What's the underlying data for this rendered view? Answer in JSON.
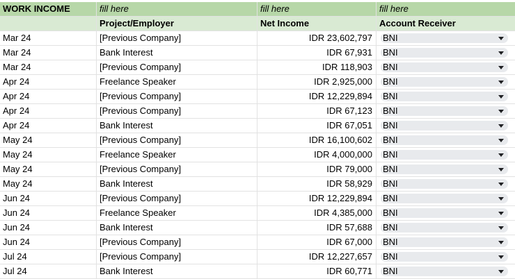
{
  "top": [
    "WORK INCOME",
    "fill here",
    "fill here",
    "fill here"
  ],
  "headers": [
    "",
    "Project/Employer",
    "Net Income",
    "Account Receiver"
  ],
  "rows": [
    {
      "month": "Mar 24",
      "project": "[Previous Company]",
      "income": "IDR 23,602,797",
      "account": "BNI"
    },
    {
      "month": "Mar 24",
      "project": "Bank Interest",
      "income": "IDR 67,931",
      "account": "BNI"
    },
    {
      "month": "Mar 24",
      "project": "[Previous Company]",
      "income": "IDR 118,903",
      "account": "BNI"
    },
    {
      "month": "Apr 24",
      "project": "Freelance Speaker",
      "income": "IDR 2,925,000",
      "account": "BNI"
    },
    {
      "month": "Apr 24",
      "project": "[Previous Company]",
      "income": "IDR 12,229,894",
      "account": "BNI"
    },
    {
      "month": "Apr 24",
      "project": "[Previous Company]",
      "income": "IDR 67,123",
      "account": "BNI"
    },
    {
      "month": "Apr 24",
      "project": "Bank Interest",
      "income": "IDR 67,051",
      "account": "BNI"
    },
    {
      "month": "May 24",
      "project": "[Previous Company]",
      "income": "IDR 16,100,602",
      "account": "BNI"
    },
    {
      "month": "May 24",
      "project": "Freelance Speaker",
      "income": "IDR 4,000,000",
      "account": "BNI"
    },
    {
      "month": "May 24",
      "project": "[Previous Company]",
      "income": "IDR 79,000",
      "account": "BNI"
    },
    {
      "month": "May 24",
      "project": "Bank Interest",
      "income": "IDR 58,929",
      "account": "BNI"
    },
    {
      "month": "Jun 24",
      "project": "[Previous Company]",
      "income": "IDR 12,229,894",
      "account": "BNI"
    },
    {
      "month": "Jun 24",
      "project": "Freelance Speaker",
      "income": "IDR 4,385,000",
      "account": "BNI"
    },
    {
      "month": "Jun 24",
      "project": "Bank Interest",
      "income": "IDR 57,688",
      "account": "BNI"
    },
    {
      "month": "Jun 24",
      "project": "[Previous Company]",
      "income": "IDR 67,000",
      "account": "BNI"
    },
    {
      "month": "Jul 24",
      "project": "[Previous Company]",
      "income": "IDR 12,227,657",
      "account": "BNI"
    },
    {
      "month": "Jul 24",
      "project": "Bank Interest",
      "income": "IDR 60,771",
      "account": "BNI"
    }
  ]
}
